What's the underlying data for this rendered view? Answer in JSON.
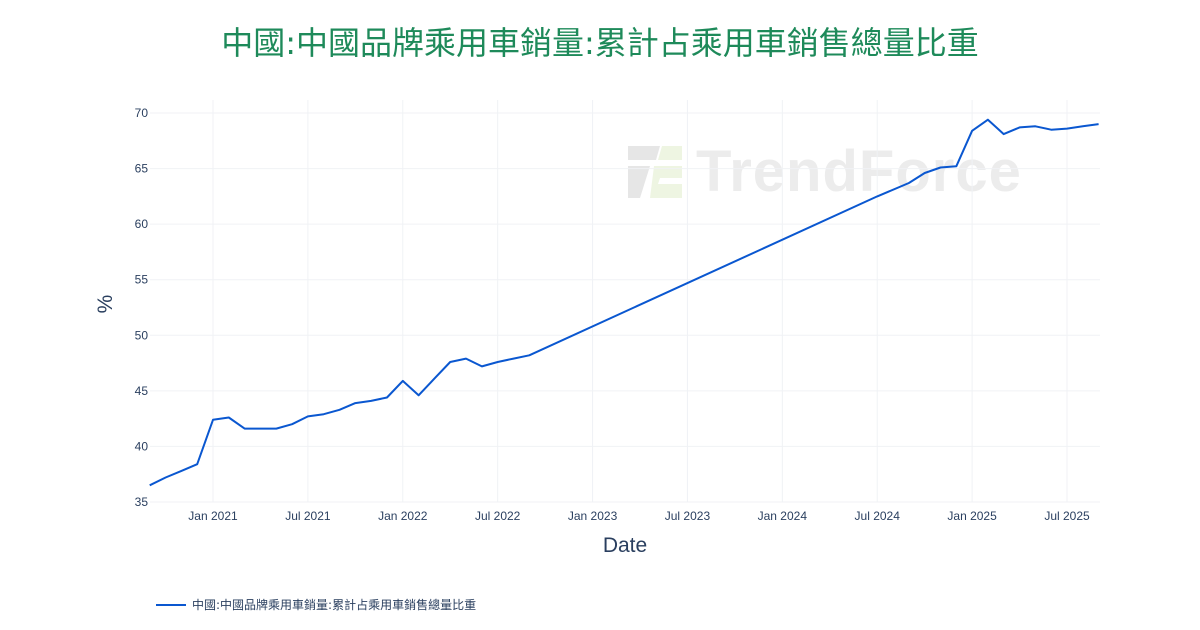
{
  "title": "中國:中國品牌乘用車銷量:累計占乘用車銷售總量比重",
  "watermark": "TrendForce",
  "legend": {
    "label": "中國:中國品牌乘用車銷量:累計占乘用車銷售總量比重",
    "color": "#0a57d0"
  },
  "colors": {
    "title": "#1e8a5a",
    "line": "#0a57d0",
    "grid": "#f0f2f5",
    "text": "#2a3f5f"
  },
  "chart_data": {
    "type": "line",
    "title": "中國:中國品牌乘用車銷量:累計占乘用車銷售總量比重",
    "xlabel": "Date",
    "ylabel": "%",
    "ylim": [
      35,
      70
    ],
    "yticks": [
      35,
      40,
      45,
      50,
      55,
      60,
      65,
      70
    ],
    "xticks": [
      "Jan 2021",
      "Jul 2021",
      "Jan 2022",
      "Jul 2022",
      "Jan 2023",
      "Jul 2023",
      "Jan 2024",
      "Jul 2024",
      "Jan 2025",
      "Jul 2025"
    ],
    "grid": true,
    "legend_position": "bottom-left",
    "series": [
      {
        "name": "中國:中國品牌乘用車銷量:累計占乘用車銷售總量比重",
        "x": [
          "2020-09",
          "2020-10",
          "2020-11",
          "2020-12",
          "2021-01",
          "2021-02",
          "2021-03",
          "2021-04",
          "2021-05",
          "2021-06",
          "2021-07",
          "2021-08",
          "2021-09",
          "2021-10",
          "2021-11",
          "2021-12",
          "2022-01",
          "2022-02",
          "2022-03",
          "2022-04",
          "2022-05",
          "2022-06",
          "2022-07",
          "2022-08",
          "2022-09",
          "2024-07",
          "2024-09",
          "2024-10",
          "2024-11",
          "2024-12",
          "2025-01",
          "2025-02",
          "2025-03",
          "2025-04",
          "2025-05",
          "2025-06",
          "2025-07",
          "2025-08",
          "2025-09"
        ],
        "values": [
          36.5,
          37.2,
          37.8,
          38.4,
          42.4,
          42.6,
          41.6,
          41.6,
          41.6,
          42.0,
          42.7,
          42.9,
          43.3,
          43.9,
          44.1,
          44.4,
          45.9,
          44.6,
          46.1,
          47.6,
          47.9,
          47.2,
          47.6,
          47.9,
          48.2,
          62.5,
          63.7,
          64.6,
          65.1,
          65.2,
          68.4,
          69.4,
          68.1,
          68.7,
          68.8,
          68.5,
          68.6,
          68.8,
          69.0
        ]
      }
    ]
  }
}
